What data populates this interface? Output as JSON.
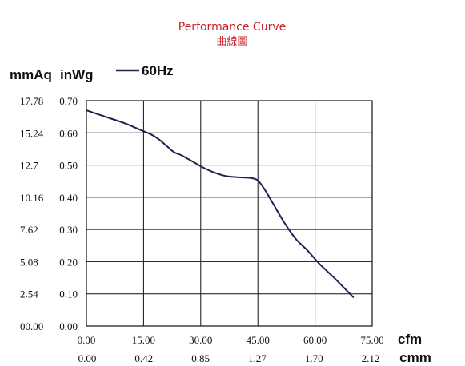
{
  "chart_data": {
    "type": "line",
    "title": "Performance Curve",
    "subtitle": "曲線圖",
    "y_units": {
      "left_outer": "mmAq",
      "left_inner": "inWg"
    },
    "x_units": {
      "primary": "cfm",
      "secondary": "cmm"
    },
    "x_ticks_cfm": [
      "0.00",
      "15.00",
      "30.00",
      "45.00",
      "60.00",
      "75.00"
    ],
    "x_ticks_cmm": [
      "0.00",
      "0.42",
      "0.85",
      "1.27",
      "1.70",
      "2.12"
    ],
    "y_ticks_inwg": [
      "0.00",
      "0.10",
      "0.20",
      "0.30",
      "0.40",
      "0.50",
      "0.60",
      "0.70"
    ],
    "y_ticks_mmaq": [
      "00.00",
      "2.54",
      "5.08",
      "7.62",
      "10.16",
      "12.7",
      "15.24",
      "17.78"
    ],
    "xlim": [
      0,
      75
    ],
    "ylim": [
      0,
      0.7
    ],
    "grid": true,
    "legend_position": "top-left",
    "series": [
      {
        "name": "60Hz",
        "color": "#1a2250",
        "x": [
          0,
          5,
          10,
          14,
          17,
          19,
          21,
          23,
          25,
          28,
          31,
          34,
          37,
          40,
          43,
          45,
          47,
          49,
          52,
          55,
          58,
          61,
          65,
          70
        ],
        "y": [
          0.67,
          0.65,
          0.63,
          0.61,
          0.595,
          0.58,
          0.56,
          0.54,
          0.53,
          0.51,
          0.49,
          0.475,
          0.465,
          0.462,
          0.46,
          0.452,
          0.42,
          0.38,
          0.32,
          0.27,
          0.235,
          0.195,
          0.15,
          0.09
        ]
      }
    ]
  }
}
